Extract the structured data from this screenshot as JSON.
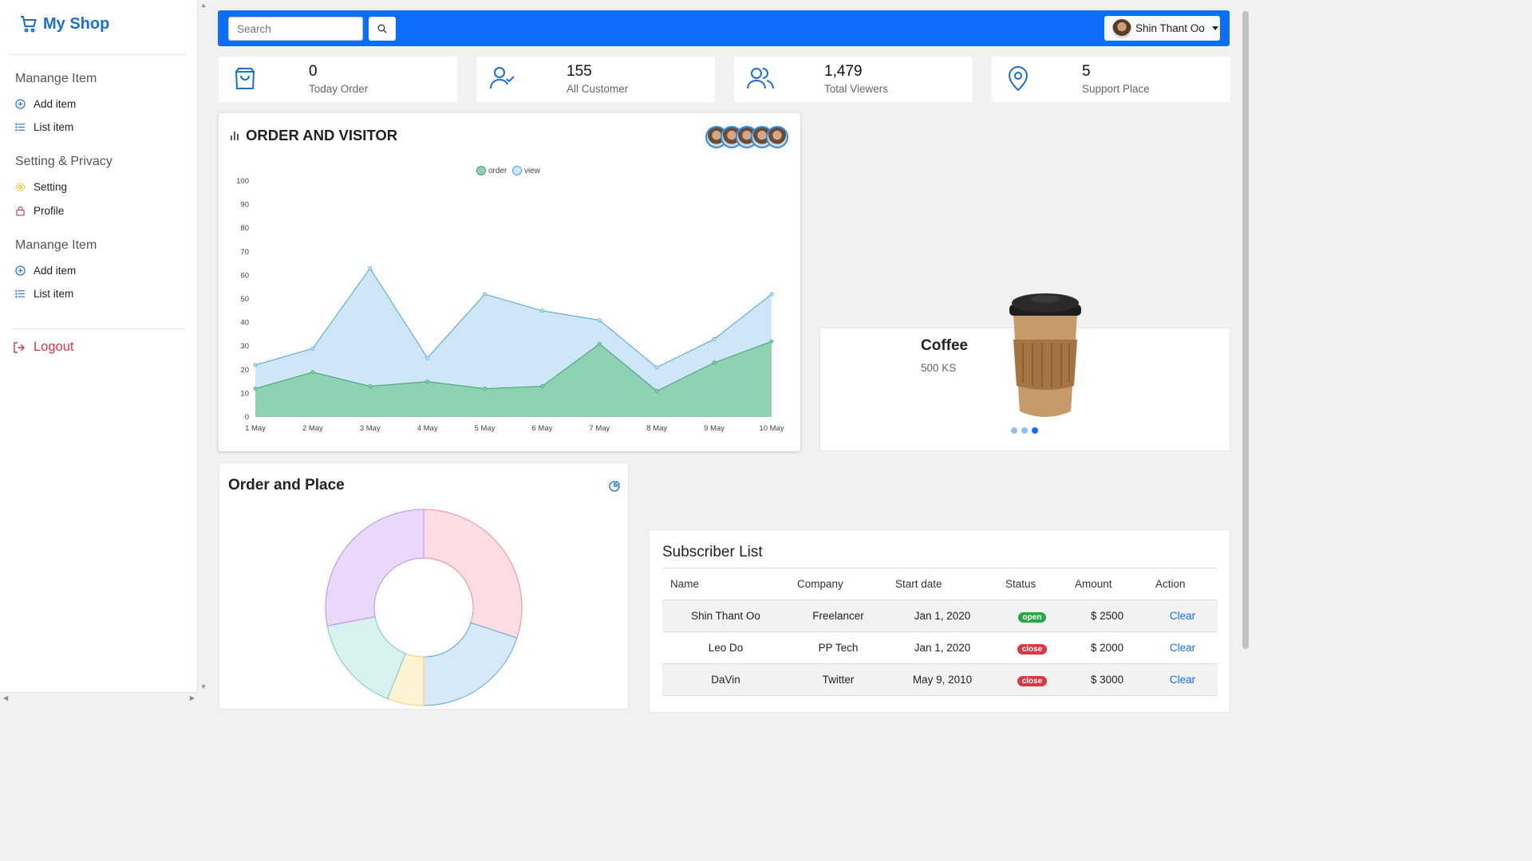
{
  "brand": {
    "name": "My Shop",
    "icon": "cart-icon",
    "color": "#1a6fd6"
  },
  "sidebar": {
    "sections": [
      {
        "title": "Manange Item",
        "items": [
          {
            "label": "Add item",
            "icon": "plus-circle-icon"
          },
          {
            "label": "List item",
            "icon": "list-icon"
          }
        ]
      },
      {
        "title": "Setting & Privacy",
        "items": [
          {
            "label": "Setting",
            "icon": "gear-icon"
          },
          {
            "label": "Profile",
            "icon": "lock-icon"
          }
        ]
      },
      {
        "title": "Manange Item",
        "items": [
          {
            "label": "Add item",
            "icon": "plus-circle-icon"
          },
          {
            "label": "List item",
            "icon": "list-icon"
          }
        ]
      }
    ],
    "logout": "Logout"
  },
  "topbar": {
    "search_placeholder": "Search",
    "user_name": "Shin Thant Oo",
    "bg_color": "#0d6efd"
  },
  "stats": [
    {
      "value": "0",
      "label": "Today Order",
      "icon": "bag-icon"
    },
    {
      "value": "155",
      "label": "All Customer",
      "icon": "user-check-icon"
    },
    {
      "value": "1,479",
      "label": "Total Viewers",
      "icon": "users-icon"
    },
    {
      "value": "5",
      "label": "Support Place",
      "icon": "map-pin-icon"
    }
  ],
  "order_chart": {
    "title": "ORDER AND VISITOR",
    "chart_data": {
      "type": "area",
      "categories": [
        "1 May",
        "2 May",
        "3 May",
        "4 May",
        "5 May",
        "6 May",
        "7 May",
        "8 May",
        "9 May",
        "10 May"
      ],
      "series": [
        {
          "name": "order",
          "values": [
            12,
            19,
            13,
            15,
            12,
            13,
            31,
            11,
            23,
            32
          ],
          "color": "#8fd1b3"
        },
        {
          "name": "view",
          "values": [
            22,
            29,
            63,
            25,
            52,
            45,
            41,
            21,
            33,
            52
          ],
          "color": "#cfe6f8"
        }
      ],
      "ylim": [
        0,
        100
      ],
      "yticks": [
        0,
        10,
        20,
        30,
        40,
        50,
        60,
        70,
        80,
        90,
        100
      ],
      "legend": "top"
    }
  },
  "product": {
    "name": "Coffee",
    "price": "500 KS"
  },
  "place_chart": {
    "title": "Order and Place",
    "chart_data": {
      "type": "pie",
      "values": [
        30,
        20,
        6,
        16,
        28
      ],
      "colors": [
        "#ffdde4",
        "#d7e9f8",
        "#fff3d3",
        "#d9f2ef",
        "#ead9fb"
      ],
      "strokes": [
        "#f08aa3",
        "#5aa6e6",
        "#f3cf6f",
        "#75cabd",
        "#b48ef0"
      ]
    }
  },
  "subscribers": {
    "title": "Subscriber List",
    "columns": [
      "Name",
      "Company",
      "Start date",
      "Status",
      "Amount",
      "Action"
    ],
    "rows": [
      {
        "name": "Shin Thant Oo",
        "company": "Freelancer",
        "start": "Jan 1, 2020",
        "status": "open",
        "amount": "$ 2500",
        "action": "Clear"
      },
      {
        "name": "Leo Do",
        "company": "PP Tech",
        "start": "Jan 1, 2020",
        "status": "close",
        "amount": "$ 2000",
        "action": "Clear"
      },
      {
        "name": "DaVin",
        "company": "Twitter",
        "start": "May 9, 2010",
        "status": "close",
        "amount": "$ 3000",
        "action": "Clear"
      }
    ]
  }
}
